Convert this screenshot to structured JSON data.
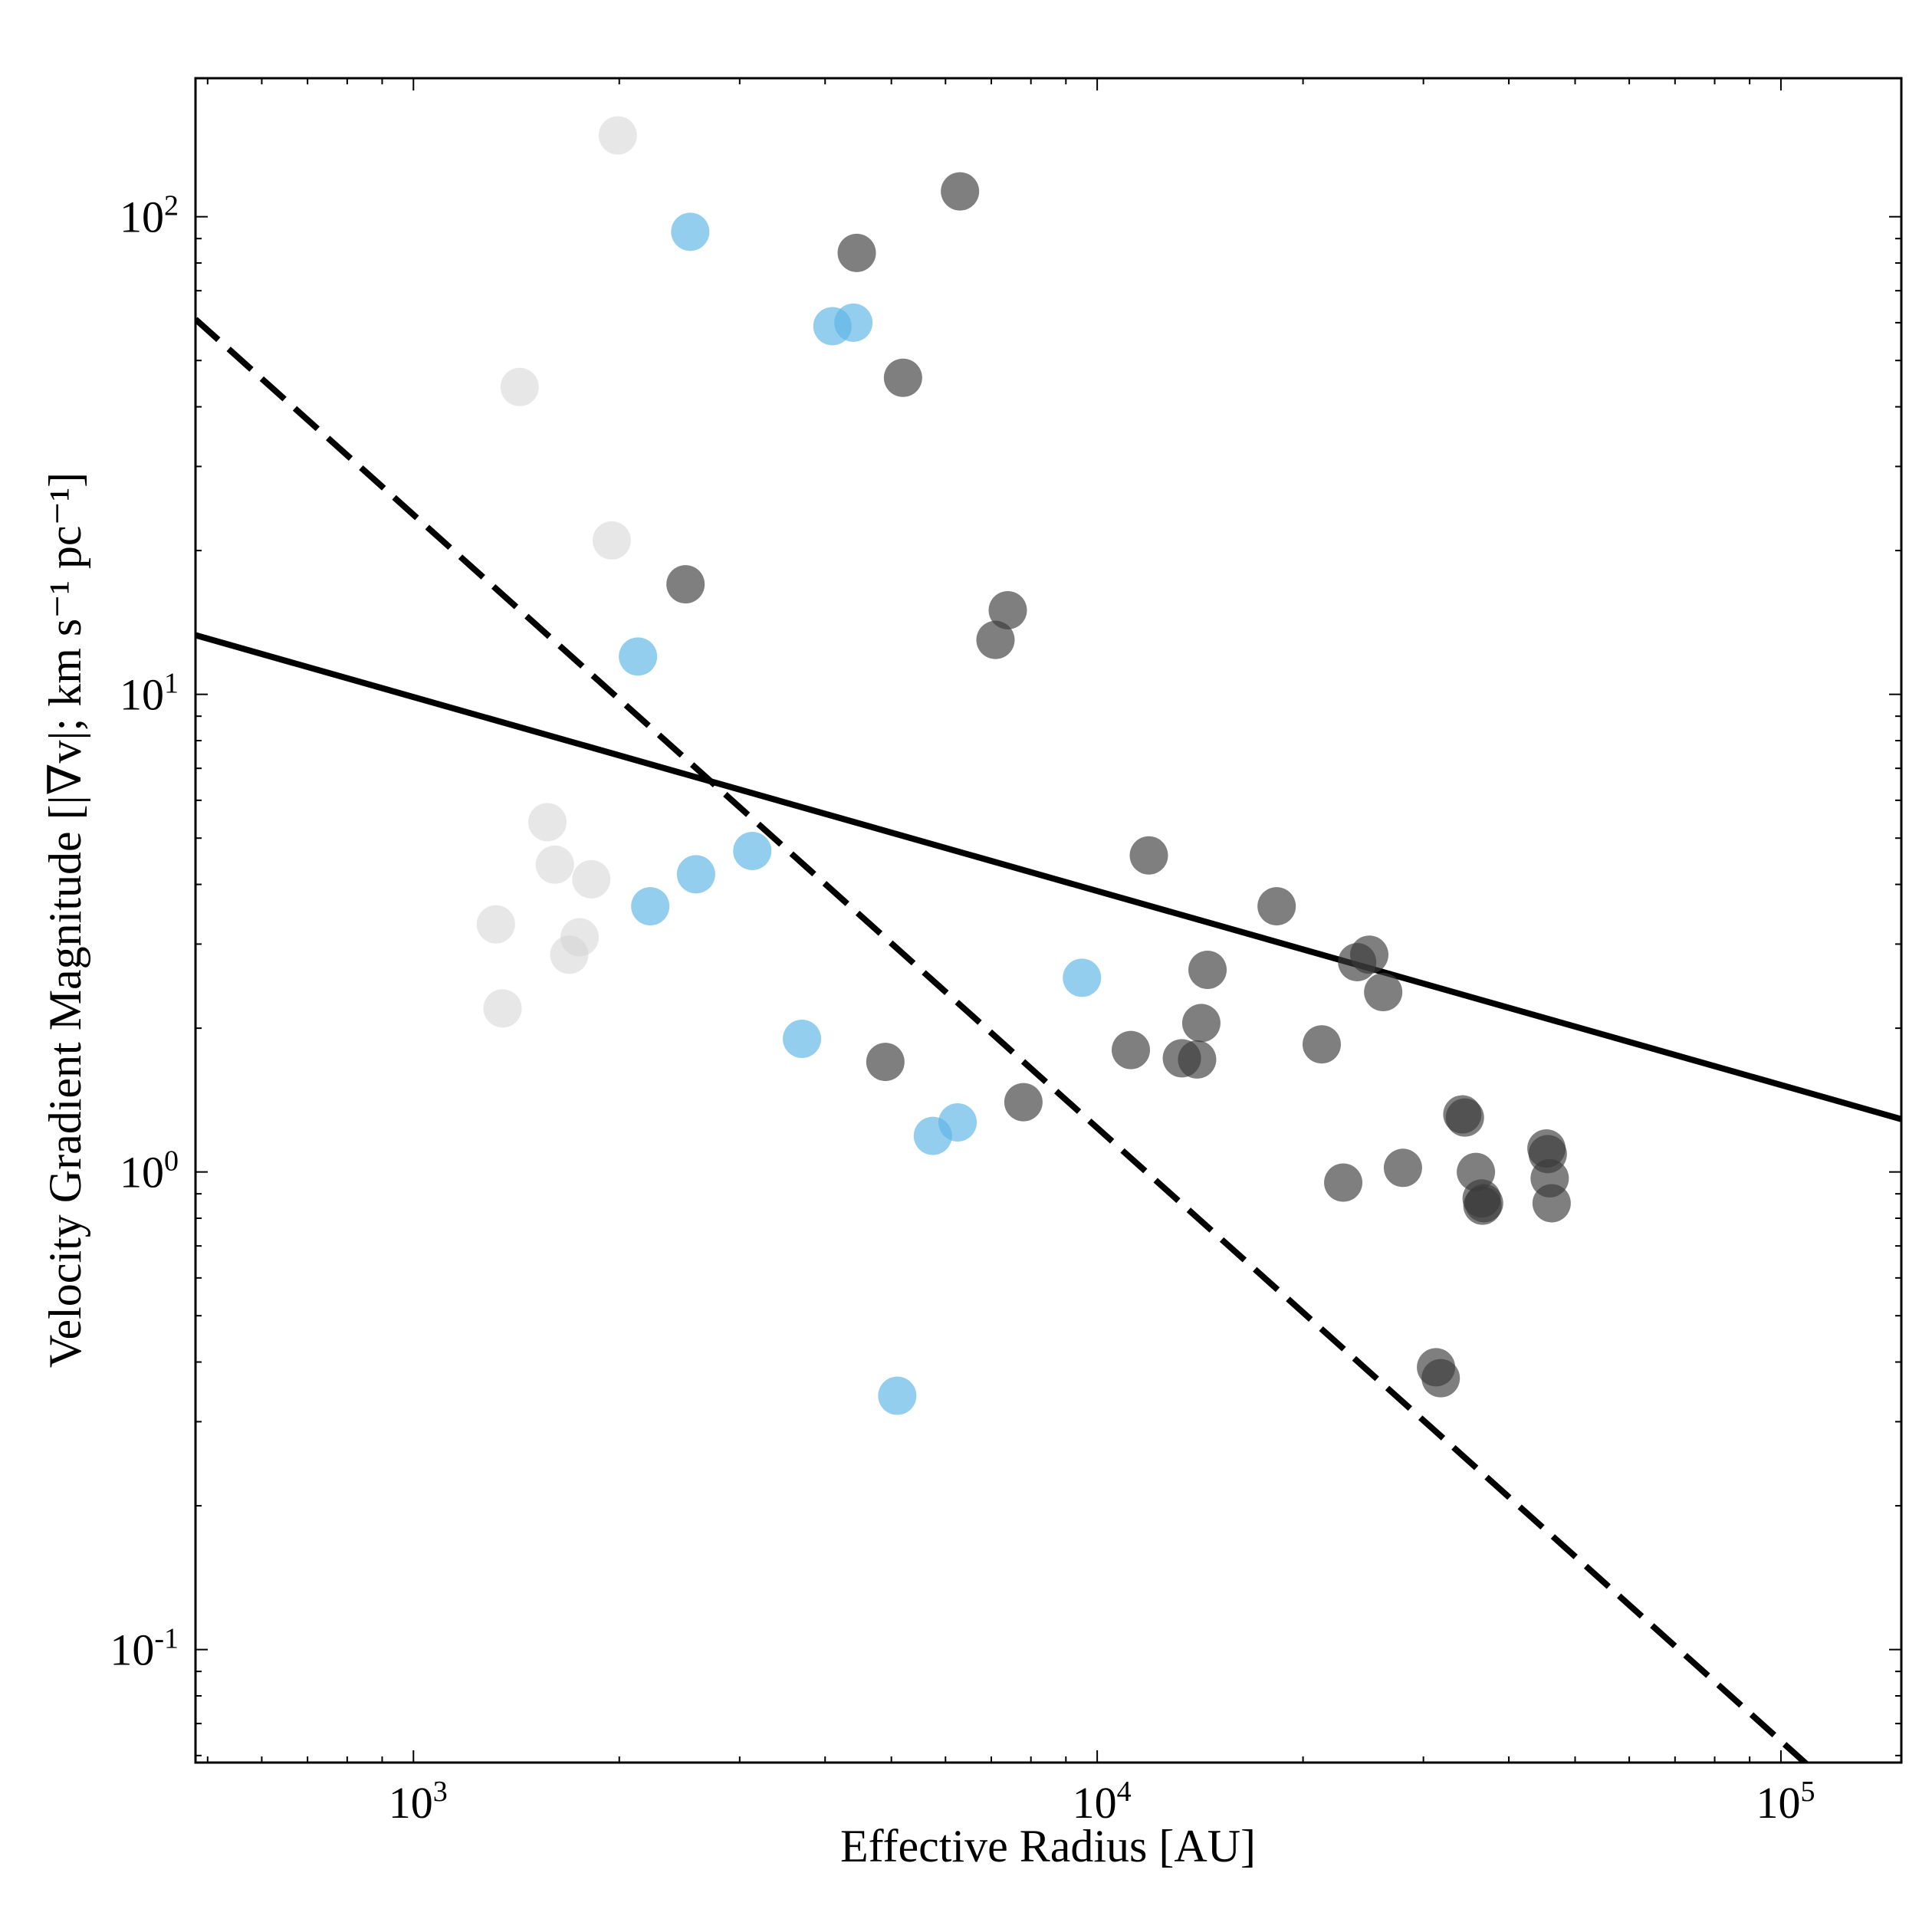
{
  "chart_data": {
    "type": "scatter",
    "xlabel": "Effective Radius [AU]",
    "ylabel": "Velocity Gradient Magnitude [|∇v|; km s⁻¹ pc⁻¹]",
    "xscale": "log",
    "yscale": "log",
    "xlim": [
      480,
      150000
    ],
    "ylim": [
      0.058,
      195
    ],
    "grid": false,
    "xticks": [
      {
        "value": 1000,
        "base": "10",
        "exp": "3"
      },
      {
        "value": 10000,
        "base": "10",
        "exp": "4"
      },
      {
        "value": 100000,
        "base": "10",
        "exp": "5"
      }
    ],
    "yticks": [
      {
        "value": 0.1,
        "base": "10",
        "exp": "-1"
      },
      {
        "value": 1,
        "base": "10",
        "exp": "0"
      },
      {
        "value": 10,
        "base": "10",
        "exp": "1"
      },
      {
        "value": 100,
        "base": "10",
        "exp": "2"
      }
    ],
    "colors": {
      "light_gray": "#d4d4d4",
      "blue": "#5ab4e5",
      "dark_gray": "#3a3a3a",
      "fit_line": "#000000"
    },
    "series": [
      {
        "color": "light_gray",
        "opacity": 0.55,
        "points": [
          [
            1990,
            148
          ],
          [
            1430,
            44
          ],
          [
            1950,
            21
          ],
          [
            1570,
            5.4
          ],
          [
            1610,
            4.4
          ],
          [
            1820,
            4.1
          ],
          [
            1320,
            3.3
          ],
          [
            1750,
            3.1
          ],
          [
            1690,
            2.85
          ],
          [
            1350,
            2.2
          ]
        ]
      },
      {
        "color": "blue",
        "opacity": 0.65,
        "points": [
          [
            2540,
            93
          ],
          [
            4100,
            59
          ],
          [
            4400,
            60
          ],
          [
            2130,
            12
          ],
          [
            3130,
            4.7
          ],
          [
            2590,
            4.2
          ],
          [
            2220,
            3.6
          ],
          [
            3700,
            1.9
          ],
          [
            9500,
            2.55
          ],
          [
            6250,
            1.27
          ],
          [
            5750,
            1.19
          ],
          [
            5100,
            0.34
          ]
        ]
      },
      {
        "color": "dark_gray",
        "opacity": 0.65,
        "points": [
          [
            6300,
            113
          ],
          [
            4450,
            84
          ],
          [
            5200,
            46
          ],
          [
            2500,
            17
          ],
          [
            7400,
            15
          ],
          [
            7100,
            13
          ],
          [
            11900,
            4.6
          ],
          [
            18300,
            3.6
          ],
          [
            25000,
            2.85
          ],
          [
            24000,
            2.75
          ],
          [
            26200,
            2.38
          ],
          [
            14500,
            2.65
          ],
          [
            14200,
            2.05
          ],
          [
            21300,
            1.85
          ],
          [
            11200,
            1.8
          ],
          [
            13300,
            1.73
          ],
          [
            14000,
            1.72
          ],
          [
            4900,
            1.7
          ],
          [
            7800,
            1.4
          ],
          [
            34200,
            1.32
          ],
          [
            34500,
            1.3
          ],
          [
            45400,
            1.12
          ],
          [
            45600,
            1.09
          ],
          [
            45900,
            0.97
          ],
          [
            46200,
            0.86
          ],
          [
            35800,
            1.0
          ],
          [
            36500,
            0.88
          ],
          [
            36800,
            0.86
          ],
          [
            36600,
            0.85
          ],
          [
            28000,
            1.02
          ],
          [
            22900,
            0.95
          ],
          [
            31300,
            0.39
          ],
          [
            31800,
            0.37
          ]
        ]
      }
    ],
    "fits": [
      {
        "style": "solid",
        "from": [
          480,
          13.3
        ],
        "to": [
          150000,
          1.29
        ]
      },
      {
        "style": "dashed",
        "from": [
          480,
          61
        ],
        "to": [
          113000,
          0.055
        ]
      }
    ]
  }
}
